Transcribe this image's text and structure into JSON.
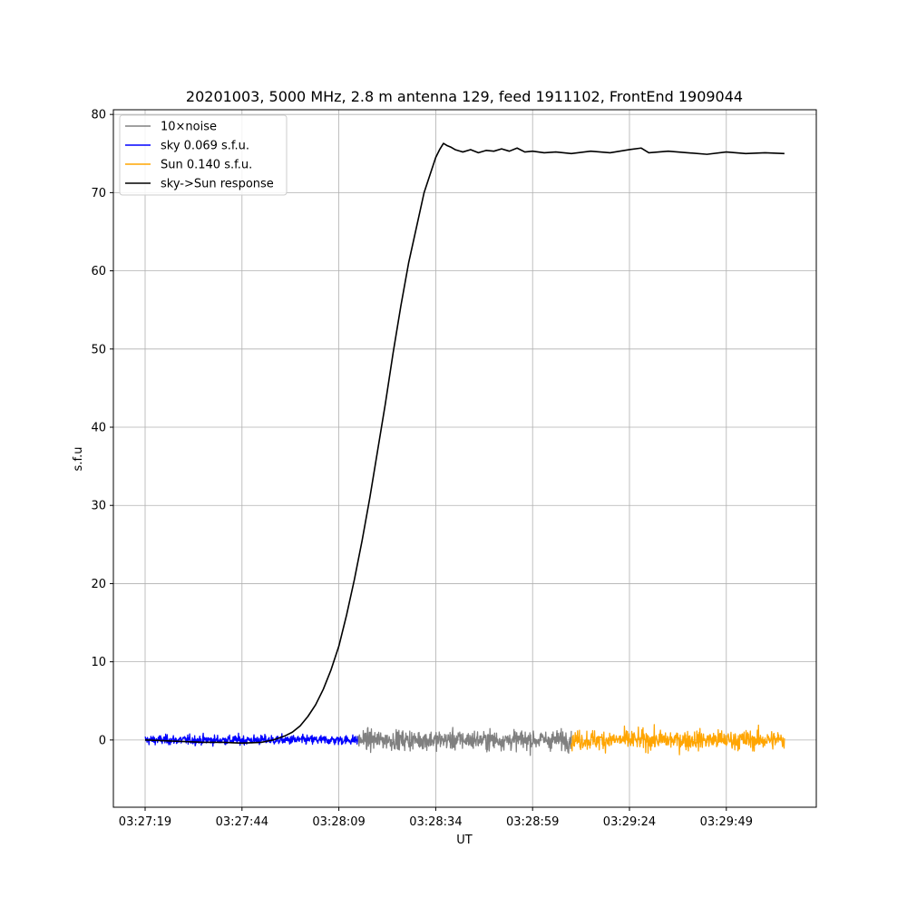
{
  "chart_data": {
    "type": "line",
    "title": "20201003, 5000 MHz, 2.8 m antenna 129, feed 1911102, FrontEnd 1909044",
    "xlabel": "UT",
    "ylabel": "s.f.u",
    "x_range_seconds": [
      0,
      165
    ],
    "x_ticks": [
      {
        "label": "03:27:19",
        "t": 0
      },
      {
        "label": "03:27:44",
        "t": 25
      },
      {
        "label": "03:28:09",
        "t": 50
      },
      {
        "label": "03:28:34",
        "t": 75
      },
      {
        "label": "03:28:59",
        "t": 100
      },
      {
        "label": "03:29:24",
        "t": 125
      },
      {
        "label": "03:29:49",
        "t": 150
      }
    ],
    "y_ticks": [
      0,
      10,
      20,
      30,
      40,
      50,
      60,
      70,
      80
    ],
    "ylim": [
      -8.6,
      80.6
    ],
    "grid": true,
    "legend_position": "upper-left",
    "series": [
      {
        "name": "10×noise",
        "color": "#808080",
        "kind": "noise",
        "t_range": [
          55,
          110
        ],
        "amplitude": 1.6
      },
      {
        "name": "sky 0.069 s.f.u.",
        "color": "#0000ff",
        "kind": "noise",
        "t_range": [
          0,
          55
        ],
        "amplitude": 0.8
      },
      {
        "name": "Sun 0.140 s.f.u.",
        "color": "#ffa500",
        "kind": "noise",
        "t_range": [
          110,
          165
        ],
        "amplitude": 1.6
      },
      {
        "name": "sky->Sun response",
        "color": "#000000",
        "kind": "line",
        "t": [
          0,
          5,
          10,
          15,
          20,
          25,
          30,
          33,
          36,
          38,
          40,
          42,
          44,
          46,
          48,
          50,
          52,
          54,
          56,
          58,
          60,
          62,
          64,
          66,
          68,
          70,
          72,
          74,
          75,
          76,
          77,
          78,
          79,
          80,
          82,
          84,
          86,
          88,
          90,
          92,
          94,
          96,
          98,
          100,
          103,
          106,
          110,
          115,
          120,
          125,
          128,
          130,
          135,
          140,
          145,
          150,
          155,
          160,
          165
        ],
        "y": [
          0,
          -0.1,
          -0.2,
          -0.3,
          -0.3,
          -0.4,
          -0.3,
          0,
          0.5,
          1,
          1.8,
          3,
          4.5,
          6.5,
          9,
          12,
          16,
          20.5,
          25.5,
          31,
          37,
          43,
          49.5,
          55.5,
          61,
          65.5,
          70,
          73,
          74.5,
          75.5,
          76.3,
          76,
          75.8,
          75.5,
          75.2,
          75.5,
          75.1,
          75.4,
          75.3,
          75.6,
          75.3,
          75.7,
          75.2,
          75.3,
          75.1,
          75.2,
          75,
          75.3,
          75.1,
          75.5,
          75.7,
          75.1,
          75.3,
          75.1,
          74.9,
          75.2,
          75,
          75.1,
          75
        ]
      }
    ]
  }
}
